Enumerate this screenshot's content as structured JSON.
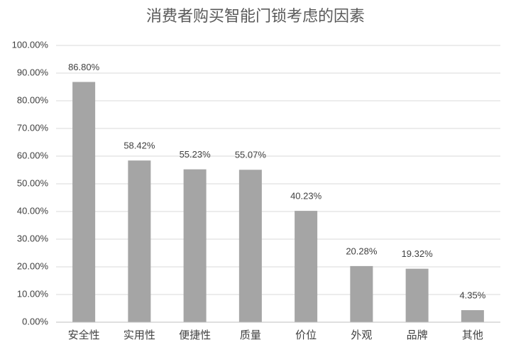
{
  "chart_data": {
    "type": "bar",
    "title": "消费者购买智能门锁考虑的因素",
    "categories": [
      "安全性",
      "实用性",
      "便捷性",
      "质量",
      "价位",
      "外观",
      "品牌",
      "其他"
    ],
    "values": [
      86.8,
      58.42,
      55.23,
      55.07,
      40.23,
      20.28,
      19.32,
      4.35
    ],
    "value_labels": [
      "86.80%",
      "58.42%",
      "55.23%",
      "55.07%",
      "40.23%",
      "20.28%",
      "19.32%",
      "4.35%"
    ],
    "color": "#a5a5a5",
    "ylim": [
      0,
      100
    ],
    "yticks": [
      {
        "value": 0,
        "label": "0.00%"
      },
      {
        "value": 10,
        "label": "10.00%"
      },
      {
        "value": 20,
        "label": "20.00%"
      },
      {
        "value": 30,
        "label": "30.00%"
      },
      {
        "value": 40,
        "label": "40.00%"
      },
      {
        "value": 50,
        "label": "50.00%"
      },
      {
        "value": 60,
        "label": "60.00%"
      },
      {
        "value": 70,
        "label": "70.00%"
      },
      {
        "value": 80,
        "label": "80.00%"
      },
      {
        "value": 90,
        "label": "90.00%"
      },
      {
        "value": 100,
        "label": "100.00%"
      }
    ],
    "grid": true
  }
}
